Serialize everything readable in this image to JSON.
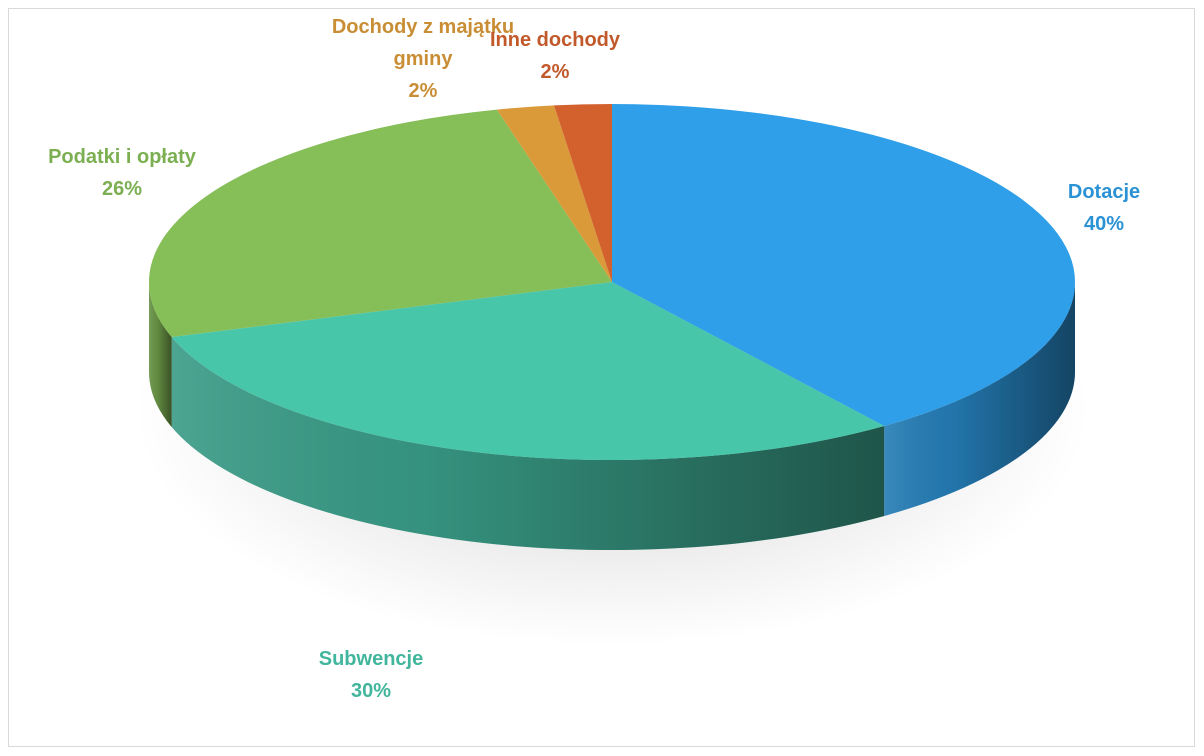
{
  "chart_data": {
    "type": "pie",
    "title": "",
    "legend": "none",
    "slices": [
      {
        "label": "Dotacje",
        "value": 40,
        "value_label": "40%",
        "color": "#2E9FE8"
      },
      {
        "label": "Subwencje",
        "value": 30,
        "value_label": "30%",
        "color": "#48C6AA"
      },
      {
        "label": "Podatki i opłaty",
        "value": 26,
        "value_label": "26%",
        "color": "#86BE58"
      },
      {
        "label": "Dochody z majątku gminy",
        "label_lines": [
          "Dochody z majątku",
          "gminy"
        ],
        "value": 2,
        "value_label": "2%",
        "color": "#DB9A3A"
      },
      {
        "label": "Inne dochody",
        "value": 2,
        "value_label": "2%",
        "color": "#D2612E"
      }
    ]
  }
}
